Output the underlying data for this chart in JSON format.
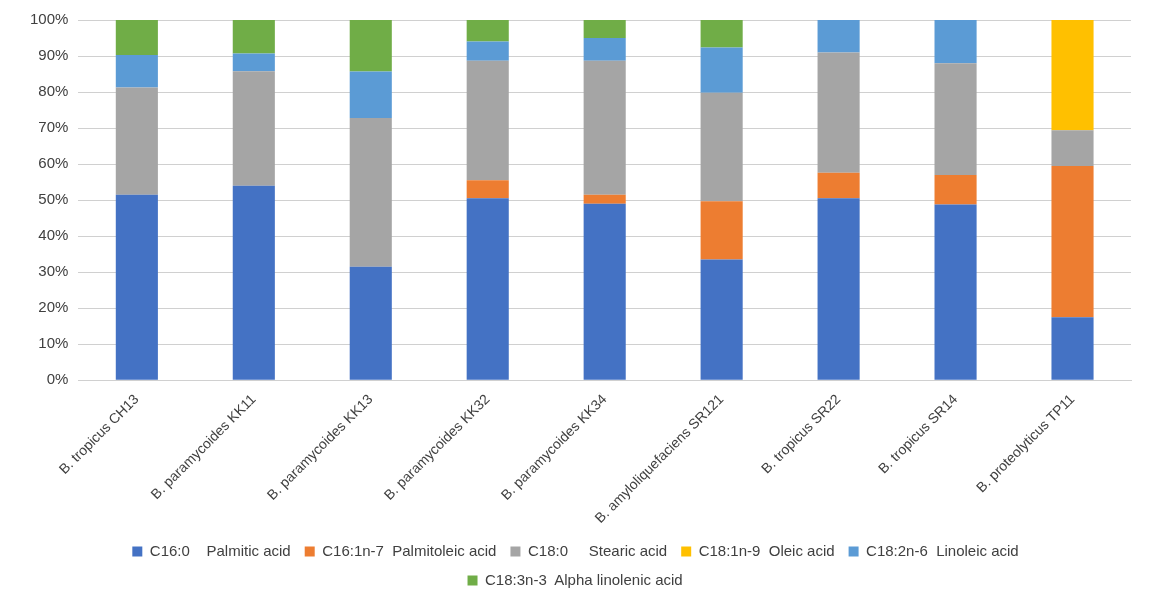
{
  "chart_data": {
    "type": "bar",
    "stacked": true,
    "categories": [
      "B. tropicus CH13",
      "B. paramycoides KK11",
      "B. paramycoides KK13",
      "B. paramycoides KK32",
      "B. paramycoides KK34",
      "B. amyloliquefaciens SR121",
      "B. tropicus SR22",
      "B. tropicus SR14",
      "B. proteolyticus TP11"
    ],
    "series": [
      {
        "name": "C16:0    Palmitic acid",
        "color": "#4472c4",
        "values": [
          51.5,
          54,
          31.5,
          50.5,
          49,
          33.5,
          50.5,
          48.8,
          17.5
        ]
      },
      {
        "name": "C16:1n-7  Palmitoleic acid",
        "color": "#ed7d31",
        "values": [
          0,
          0,
          0,
          5,
          2.5,
          16.2,
          7.1,
          8.2,
          42
        ]
      },
      {
        "name": "C18:0     Stearic acid",
        "color": "#a5a5a5",
        "values": [
          29.8,
          31.8,
          41.3,
          33.2,
          37.2,
          30.1,
          33.4,
          31,
          9.9
        ]
      },
      {
        "name": "C18:1n-9  Oleic acid",
        "color": "#ffc000",
        "values": [
          0,
          0,
          0,
          0,
          0,
          0,
          0,
          0,
          30.6
        ]
      },
      {
        "name": "C18:2n-6  Linoleic acid",
        "color": "#5b9bd5",
        "values": [
          9,
          4.9,
          12.9,
          5.3,
          6.3,
          12.6,
          9,
          12,
          0
        ]
      },
      {
        "name": "C18:3n-3  Alpha linolenic acid",
        "color": "#70ad47",
        "values": [
          9.7,
          9.3,
          14.3,
          6,
          5,
          7.6,
          0,
          0,
          0
        ]
      }
    ],
    "ylim": [
      0,
      100
    ],
    "yticks": [
      {
        "value": 0,
        "label": "0%"
      },
      {
        "value": 10,
        "label": "10%"
      },
      {
        "value": 20,
        "label": "20%"
      },
      {
        "value": 30,
        "label": "30%"
      },
      {
        "value": 40,
        "label": "40%"
      },
      {
        "value": 50,
        "label": "50%"
      },
      {
        "value": 60,
        "label": "60%"
      },
      {
        "value": 70,
        "label": "70%"
      },
      {
        "value": 80,
        "label": "80%"
      },
      {
        "value": 90,
        "label": "90%"
      },
      {
        "value": 100,
        "label": "100%"
      }
    ],
    "grid": "y",
    "legend": "bottom"
  }
}
